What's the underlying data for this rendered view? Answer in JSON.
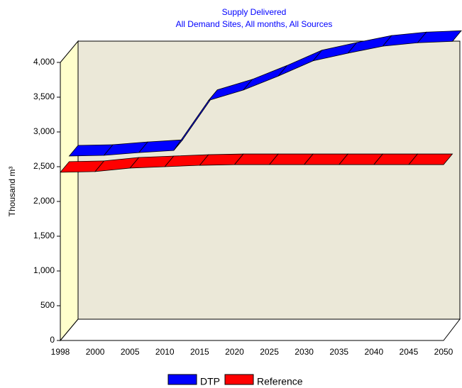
{
  "chart_data": {
    "type": "ribbon3d",
    "title": "Supply Delivered",
    "subtitle": "All Demand Sites,  All months,  All Sources",
    "y_label": "Thousand m³",
    "categories": [
      "1998",
      "2000",
      "2005",
      "2010",
      "2015",
      "2020",
      "2025",
      "2030",
      "2035",
      "2040",
      "2045",
      "2050"
    ],
    "series": [
      {
        "name": "DTP",
        "color": "#0000ff",
        "values": [
          2500,
          2510,
          2550,
          2580,
          3300,
          3450,
          3650,
          3870,
          3980,
          4080,
          4130,
          4150
        ]
      },
      {
        "name": "Reference",
        "color": "#ff0000",
        "values": [
          2420,
          2430,
          2480,
          2500,
          2520,
          2530,
          2530,
          2530,
          2530,
          2530,
          2530,
          2530
        ]
      }
    ],
    "ylim": [
      0,
      4000
    ],
    "yticks": [
      0,
      500,
      {
        "value": 1000,
        "label": "1,000"
      },
      {
        "value": 1500,
        "label": "1,500"
      },
      {
        "value": 2000,
        "label": "2,000"
      },
      {
        "value": 2500,
        "label": "2,500"
      },
      {
        "value": 3000,
        "label": "3,000"
      },
      {
        "value": 3500,
        "label": "3,500"
      },
      {
        "value": 4000,
        "label": "4,000"
      }
    ]
  }
}
